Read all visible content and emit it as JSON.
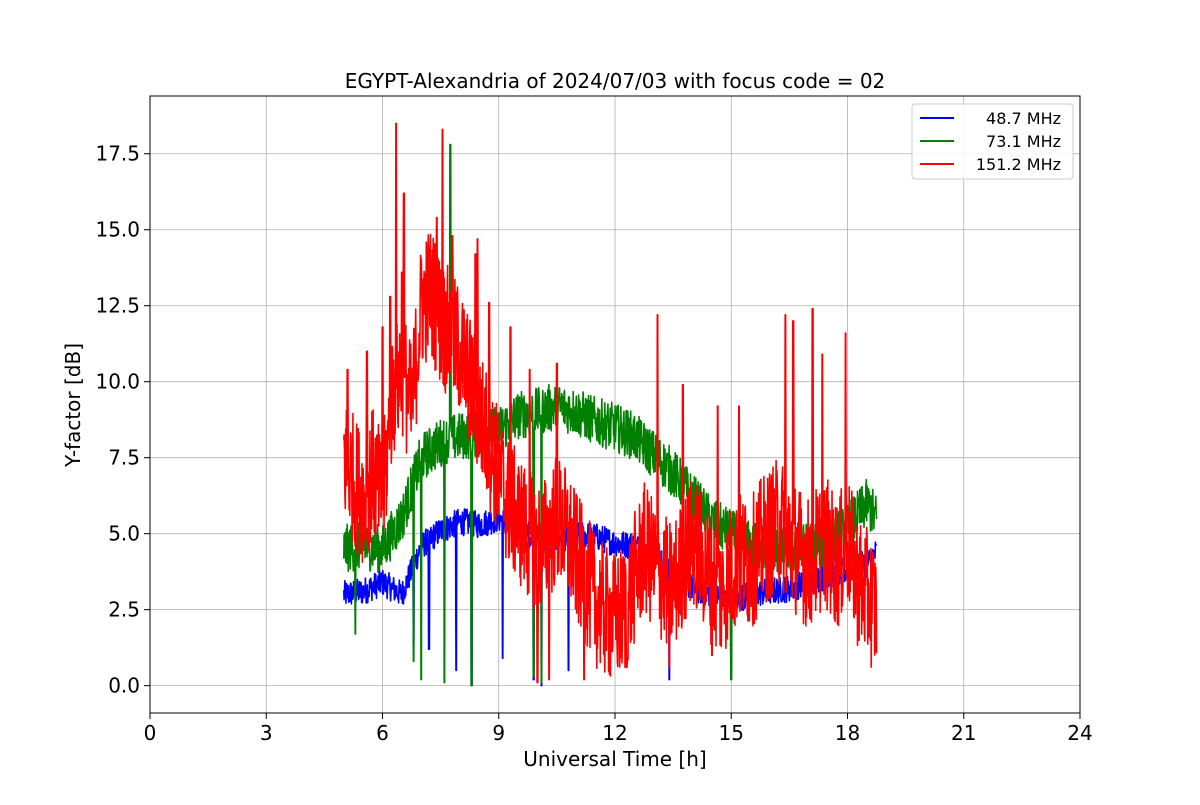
{
  "chart_data": {
    "type": "line",
    "title": "EGYPT-Alexandria of 2024/07/03 with focus code = 02",
    "xlabel": "Universal Time [h]",
    "ylabel": "Y-factor [dB]",
    "xlim": [
      0,
      24
    ],
    "ylim": [
      -0.9,
      19.4
    ],
    "xticks": [
      0,
      3,
      6,
      9,
      12,
      15,
      18,
      21,
      24
    ],
    "xtick_labels": [
      "0",
      "3",
      "6",
      "9",
      "12",
      "15",
      "18",
      "21",
      "24"
    ],
    "yticks": [
      0.0,
      2.5,
      5.0,
      7.5,
      10.0,
      12.5,
      15.0,
      17.5
    ],
    "ytick_labels": [
      "0.0",
      "2.5",
      "5.0",
      "7.5",
      "10.0",
      "12.5",
      "15.0",
      "17.5"
    ],
    "grid": true,
    "legend_position": "top-right",
    "series": [
      {
        "name": "48.7 MHz",
        "color": "#0000ff",
        "x": [
          5.0,
          5.5,
          6.0,
          6.5,
          7.0,
          7.5,
          8.0,
          8.5,
          9.0,
          9.5,
          10.0,
          10.5,
          11.0,
          11.5,
          12.0,
          12.5,
          13.0,
          13.5,
          14.0,
          14.5,
          15.0,
          15.5,
          16.0,
          16.5,
          17.0,
          17.5,
          18.0,
          18.5,
          18.75
        ],
        "y": [
          3.0,
          3.1,
          3.4,
          3.0,
          4.6,
          5.1,
          5.4,
          5.3,
          5.5,
          5.1,
          4.9,
          4.8,
          5.0,
          4.9,
          4.7,
          4.6,
          4.3,
          3.8,
          3.2,
          3.0,
          2.8,
          3.0,
          3.1,
          3.2,
          3.4,
          3.6,
          3.8,
          4.0,
          4.4
        ],
        "spikes": [
          [
            6.8,
            1.3
          ],
          [
            7.2,
            1.2
          ],
          [
            7.9,
            0.5
          ],
          [
            8.3,
            0.0
          ],
          [
            9.1,
            0.9
          ],
          [
            9.9,
            0.2
          ],
          [
            10.1,
            0.0
          ],
          [
            10.8,
            0.5
          ],
          [
            13.4,
            0.2
          ],
          [
            15.0,
            0.6
          ]
        ]
      },
      {
        "name": "73.1 MHz",
        "color": "#008000",
        "x": [
          5.0,
          5.5,
          6.0,
          6.5,
          7.0,
          7.5,
          8.0,
          8.5,
          9.0,
          9.5,
          10.0,
          10.5,
          11.0,
          11.5,
          12.0,
          12.5,
          13.0,
          13.5,
          14.0,
          14.5,
          15.0,
          15.5,
          16.0,
          16.5,
          17.0,
          17.5,
          18.0,
          18.5,
          18.75
        ],
        "y": [
          4.5,
          4.6,
          4.5,
          5.5,
          7.5,
          8.0,
          8.2,
          8.3,
          8.4,
          8.9,
          9.0,
          9.2,
          9.0,
          8.7,
          8.5,
          8.2,
          7.6,
          7.0,
          6.2,
          5.4,
          5.0,
          4.6,
          4.5,
          4.4,
          4.6,
          4.7,
          5.2,
          6.0,
          5.5
        ],
        "spikes": [
          [
            5.3,
            1.7
          ],
          [
            6.8,
            0.8
          ],
          [
            7.0,
            0.2
          ],
          [
            7.6,
            0.1
          ],
          [
            7.75,
            17.8
          ],
          [
            8.3,
            0.0
          ],
          [
            9.9,
            0.3
          ],
          [
            10.1,
            0.1
          ],
          [
            15.0,
            0.2
          ]
        ]
      },
      {
        "name": "151.2 MHz",
        "color": "#ff0000",
        "x": [
          5.0,
          5.25,
          5.5,
          5.75,
          6.0,
          6.25,
          6.5,
          6.75,
          7.0,
          7.25,
          7.5,
          7.75,
          8.0,
          8.25,
          8.5,
          8.75,
          9.0,
          9.25,
          9.5,
          9.75,
          10.0,
          10.25,
          10.5,
          10.75,
          11.0,
          11.25,
          11.5,
          11.75,
          12.0,
          12.25,
          12.5,
          12.75,
          13.0,
          13.25,
          13.5,
          13.75,
          14.0,
          14.25,
          14.5,
          14.75,
          15.0,
          15.25,
          15.5,
          15.75,
          16.0,
          16.25,
          16.5,
          16.75,
          17.0,
          17.25,
          17.5,
          17.75,
          18.0,
          18.25,
          18.5,
          18.75
        ],
        "y": [
          7.5,
          6.8,
          6.2,
          7.0,
          6.0,
          9.5,
          10.5,
          9.0,
          12.5,
          13.0,
          12.0,
          11.5,
          11.0,
          10.0,
          9.0,
          8.0,
          7.0,
          6.0,
          5.5,
          5.0,
          4.5,
          4.8,
          5.5,
          5.0,
          4.2,
          3.5,
          2.8,
          2.4,
          2.2,
          2.5,
          3.5,
          4.5,
          4.0,
          3.5,
          3.2,
          4.0,
          4.8,
          4.2,
          3.5,
          3.0,
          3.8,
          4.2,
          4.0,
          4.6,
          5.0,
          5.4,
          4.8,
          4.4,
          4.0,
          4.5,
          4.6,
          4.0,
          4.8,
          3.5,
          3.0,
          2.5
        ],
        "spikes": [
          [
            5.1,
            10.4
          ],
          [
            5.6,
            11.0
          ],
          [
            6.0,
            11.8
          ],
          [
            6.2,
            12.8
          ],
          [
            6.35,
            18.5
          ],
          [
            6.5,
            13.6
          ],
          [
            6.55,
            16.2
          ],
          [
            7.0,
            14.0
          ],
          [
            7.4,
            15.4
          ],
          [
            7.55,
            18.3
          ],
          [
            7.8,
            14.8
          ],
          [
            8.4,
            14.2
          ],
          [
            8.45,
            14.7
          ],
          [
            8.75,
            12.6
          ],
          [
            9.3,
            11.8
          ],
          [
            9.8,
            10.4
          ],
          [
            10.5,
            10.6
          ],
          [
            11.2,
            10.1
          ],
          [
            13.1,
            12.2
          ],
          [
            13.75,
            9.9
          ],
          [
            14.65,
            9.2
          ],
          [
            15.2,
            9.2
          ],
          [
            16.4,
            12.2
          ],
          [
            16.6,
            12.0
          ],
          [
            17.1,
            12.4
          ],
          [
            17.35,
            10.9
          ],
          [
            17.95,
            11.6
          ],
          [
            10.0,
            0.1
          ],
          [
            10.3,
            0.2
          ],
          [
            11.2,
            0.2
          ],
          [
            12.3,
            0.6
          ],
          [
            13.4,
            0.6
          ],
          [
            14.5,
            1.0
          ],
          [
            18.55,
            1.6
          ]
        ]
      }
    ]
  }
}
